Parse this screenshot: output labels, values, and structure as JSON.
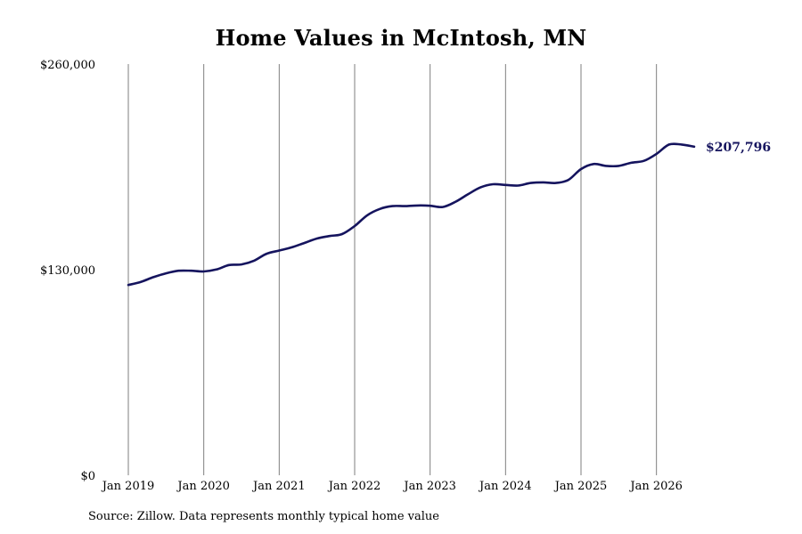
{
  "chart_data": {
    "type": "line",
    "title": "Home Values in McIntosh, MN",
    "xlabel": "",
    "ylabel": "",
    "ylim": [
      0,
      260000
    ],
    "xlim": [
      "2019-01",
      "2026-07"
    ],
    "y_ticks": [
      {
        "value": 0,
        "label": "$0"
      },
      {
        "value": 130000,
        "label": "$130,000"
      },
      {
        "value": 260000,
        "label": "$260,000"
      }
    ],
    "x_ticks": [
      {
        "date": "2019-01",
        "label": "Jan 2019"
      },
      {
        "date": "2020-01",
        "label": "Jan 2020"
      },
      {
        "date": "2021-01",
        "label": "Jan 2021"
      },
      {
        "date": "2022-01",
        "label": "Jan 2022"
      },
      {
        "date": "2023-01",
        "label": "Jan 2023"
      },
      {
        "date": "2024-01",
        "label": "Jan 2024"
      },
      {
        "date": "2025-01",
        "label": "Jan 2025"
      },
      {
        "date": "2026-01",
        "label": "Jan 2026"
      }
    ],
    "grid": "vertical lines at year ticks",
    "line_color": "#15145e",
    "grid_color": "#7f7f7f",
    "end_label": "$207,796",
    "series": [
      {
        "values": [
          {
            "x": "2019-01",
            "y": 120300
          },
          {
            "x": "2019-03",
            "y": 122300
          },
          {
            "x": "2019-05",
            "y": 125300
          },
          {
            "x": "2019-07",
            "y": 127700
          },
          {
            "x": "2019-09",
            "y": 129300
          },
          {
            "x": "2019-11",
            "y": 129300
          },
          {
            "x": "2020-01",
            "y": 128900
          },
          {
            "x": "2020-03",
            "y": 130100
          },
          {
            "x": "2020-05",
            "y": 132900
          },
          {
            "x": "2020-07",
            "y": 133300
          },
          {
            "x": "2020-09",
            "y": 135700
          },
          {
            "x": "2020-11",
            "y": 140100
          },
          {
            "x": "2021-01",
            "y": 142100
          },
          {
            "x": "2021-03",
            "y": 144100
          },
          {
            "x": "2021-05",
            "y": 146900
          },
          {
            "x": "2021-07",
            "y": 149700
          },
          {
            "x": "2021-09",
            "y": 151300
          },
          {
            "x": "2021-11",
            "y": 152500
          },
          {
            "x": "2022-01",
            "y": 157600
          },
          {
            "x": "2022-03",
            "y": 164400
          },
          {
            "x": "2022-05",
            "y": 168400
          },
          {
            "x": "2022-07",
            "y": 170200
          },
          {
            "x": "2022-09",
            "y": 170200
          },
          {
            "x": "2022-11",
            "y": 170600
          },
          {
            "x": "2023-01",
            "y": 170400
          },
          {
            "x": "2023-03",
            "y": 169600
          },
          {
            "x": "2023-05",
            "y": 172800
          },
          {
            "x": "2023-07",
            "y": 177600
          },
          {
            "x": "2023-09",
            "y": 182000
          },
          {
            "x": "2023-11",
            "y": 184000
          },
          {
            "x": "2024-01",
            "y": 183600
          },
          {
            "x": "2024-03",
            "y": 183200
          },
          {
            "x": "2024-05",
            "y": 184800
          },
          {
            "x": "2024-07",
            "y": 185200
          },
          {
            "x": "2024-09",
            "y": 184800
          },
          {
            "x": "2024-11",
            "y": 186800
          },
          {
            "x": "2025-01",
            "y": 193600
          },
          {
            "x": "2025-03",
            "y": 196800
          },
          {
            "x": "2025-05",
            "y": 195600
          },
          {
            "x": "2025-07",
            "y": 195600
          },
          {
            "x": "2025-09",
            "y": 197600
          },
          {
            "x": "2025-11",
            "y": 198800
          },
          {
            "x": "2026-01",
            "y": 203200
          },
          {
            "x": "2026-03",
            "y": 209100
          },
          {
            "x": "2026-05",
            "y": 209100
          },
          {
            "x": "2026-07",
            "y": 207796
          }
        ]
      }
    ]
  },
  "footer": {
    "source": "Source: Zillow. Data represents monthly typical home value"
  }
}
